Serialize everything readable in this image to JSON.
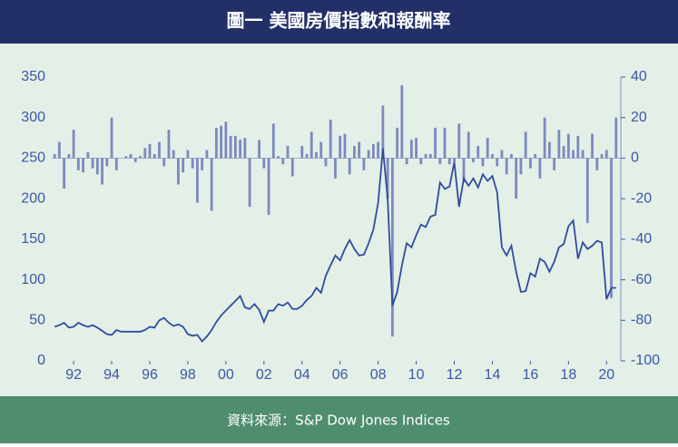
{
  "chart_data": {
    "type": "combo",
    "title": "圖一  美國房價指數和報酬率",
    "source": "資料來源：S&P Dow Jones Indices",
    "x": [
      1991,
      1991.25,
      1991.5,
      1991.75,
      1992,
      1992.25,
      1992.5,
      1992.75,
      1993,
      1993.25,
      1993.5,
      1993.75,
      1994,
      1994.25,
      1994.5,
      1994.75,
      1995,
      1995.25,
      1995.5,
      1995.75,
      1996,
      1996.25,
      1996.5,
      1996.75,
      1997,
      1997.25,
      1997.5,
      1997.75,
      1998,
      1998.25,
      1998.5,
      1998.75,
      1999,
      1999.25,
      1999.5,
      1999.75,
      2000,
      2000.25,
      2000.5,
      2000.75,
      2001,
      2001.25,
      2001.5,
      2001.75,
      2002,
      2002.25,
      2002.5,
      2002.75,
      2003,
      2003.25,
      2003.5,
      2003.75,
      2004,
      2004.25,
      2004.5,
      2004.75,
      2005,
      2005.25,
      2005.5,
      2005.75,
      2006,
      2006.25,
      2006.5,
      2006.75,
      2007,
      2007.25,
      2007.5,
      2007.75,
      2008,
      2008.25,
      2008.5,
      2008.75,
      2009,
      2009.25,
      2009.5,
      2009.75,
      2010,
      2010.25,
      2010.5,
      2010.75,
      2011,
      2011.25,
      2011.5,
      2011.75,
      2012,
      2012.25,
      2012.5,
      2012.75,
      2013,
      2013.25,
      2013.5,
      2013.75,
      2014,
      2014.25,
      2014.5,
      2014.75,
      2015,
      2015.25,
      2015.5,
      2015.75,
      2016,
      2016.25,
      2016.5,
      2016.75,
      2017,
      2017.25,
      2017.5,
      2017.75,
      2018,
      2018.25,
      2018.5,
      2018.75,
      2019,
      2019.25,
      2019.5,
      2019.75,
      2020,
      2020.25,
      2020.5
    ],
    "xlim": [
      1990.85,
      2020.75
    ],
    "xticks": [
      {
        "value": 1992,
        "label": "92"
      },
      {
        "value": 1994,
        "label": "94"
      },
      {
        "value": 1996,
        "label": "96"
      },
      {
        "value": 1998,
        "label": "98"
      },
      {
        "value": 2000,
        "label": "00"
      },
      {
        "value": 2002,
        "label": "02"
      },
      {
        "value": 2004,
        "label": "04"
      },
      {
        "value": 2006,
        "label": "06"
      },
      {
        "value": 2008,
        "label": "08"
      },
      {
        "value": 2010,
        "label": "10"
      },
      {
        "value": 2012,
        "label": "12"
      },
      {
        "value": 2014,
        "label": "14"
      },
      {
        "value": 2016,
        "label": "16"
      },
      {
        "value": 2018,
        "label": "18"
      },
      {
        "value": 2020,
        "label": "20"
      }
    ],
    "ylim": [
      0,
      350
    ],
    "yticks": [
      0,
      50,
      100,
      150,
      200,
      250,
      300,
      350
    ],
    "y2lim": [
      -100,
      40
    ],
    "y2ticks": [
      -100,
      -80,
      -60,
      -40,
      -20,
      0,
      20,
      40
    ],
    "series": [
      {
        "type": "bar",
        "axis": "y2",
        "color": "#7c89c0",
        "values": [
          2,
          8,
          -15,
          2,
          14,
          -6,
          -7,
          3,
          -5,
          -8,
          -13,
          -4,
          20,
          -6,
          0,
          1,
          2,
          -2,
          1,
          5,
          7,
          2,
          8,
          -4,
          14,
          4,
          -13,
          -7,
          4,
          -5,
          -22,
          -6,
          4,
          -26,
          15,
          16,
          18,
          11,
          11,
          9,
          10,
          -24,
          0,
          9,
          -5,
          -28,
          17,
          1,
          -3,
          6,
          -9,
          0,
          6,
          2,
          13,
          3,
          8,
          -4,
          19,
          -10,
          11,
          12,
          -8,
          6,
          8,
          -6,
          4,
          7,
          8,
          26,
          -20,
          -88,
          15,
          36,
          -3,
          9,
          10,
          -3,
          2,
          2,
          15,
          -3,
          15,
          -3,
          -2,
          17,
          -12,
          13,
          -2,
          6,
          -4,
          10,
          2,
          -4,
          4,
          -8,
          2,
          -20,
          -8,
          13,
          -5,
          2,
          -10,
          20,
          8,
          -6,
          14,
          6,
          12,
          4,
          11,
          4,
          -32,
          12,
          -6,
          2,
          4,
          -69,
          20
        ]
      },
      {
        "type": "line",
        "color": "#2f4c9f",
        "values": [
          42,
          44,
          47,
          41,
          42,
          47,
          44,
          42,
          44,
          41,
          37,
          33,
          32,
          38,
          36,
          36,
          36,
          36,
          36,
          38,
          42,
          41,
          50,
          53,
          47,
          43,
          45,
          42,
          33,
          31,
          32,
          24,
          30,
          38,
          48,
          56,
          62,
          68,
          74,
          80,
          66,
          64,
          70,
          63,
          48,
          62,
          62,
          70,
          68,
          72,
          64,
          64,
          68,
          75,
          80,
          90,
          84,
          105,
          118,
          130,
          124,
          138,
          149,
          138,
          130,
          131,
          145,
          162,
          195,
          262,
          200,
          68,
          85,
          118,
          145,
          140,
          155,
          168,
          165,
          178,
          180,
          220,
          212,
          215,
          245,
          190,
          225,
          216,
          225,
          214,
          230,
          222,
          228,
          208,
          140,
          130,
          142,
          110,
          85,
          86,
          108,
          104,
          126,
          122,
          110,
          122,
          140,
          144,
          166,
          173,
          126,
          146,
          138,
          142,
          148,
          146,
          76,
          90,
          90
        ]
      }
    ]
  }
}
